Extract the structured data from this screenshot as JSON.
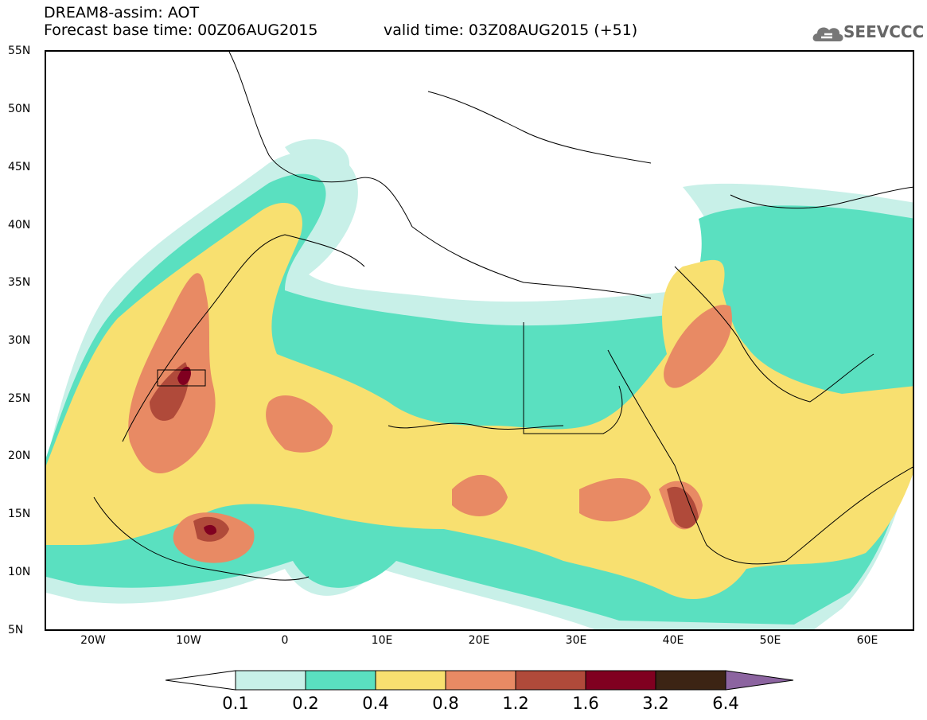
{
  "header": {
    "title": "DREAM8-assim: AOT",
    "base_time": "Forecast base time: 00Z06AUG2015",
    "valid_time": "valid time: 03Z08AUG2015 (+51)"
  },
  "logo": {
    "text": "SEEVCCC",
    "icon": "cloud-logo-icon"
  },
  "map": {
    "lat_labels": [
      "55N",
      "50N",
      "45N",
      "40N",
      "35N",
      "30N",
      "25N",
      "20N",
      "15N",
      "10N",
      "5N"
    ],
    "lon_labels": [
      "20W",
      "10W",
      "0",
      "10E",
      "20E",
      "30E",
      "40E",
      "50E",
      "60E"
    ],
    "lon_range": [
      -25,
      65
    ],
    "lat_range": [
      5,
      55
    ]
  },
  "colorbar": {
    "labels": [
      "0.1",
      "0.2",
      "0.4",
      "0.8",
      "1.2",
      "1.6",
      "3.2",
      "6.4"
    ],
    "colors": [
      "#ffffff",
      "#c8f0e8",
      "#5ae0c0",
      "#f8e070",
      "#e88a64",
      "#b04a3a",
      "#800020",
      "#3c2414",
      "#8c64a0"
    ]
  }
}
